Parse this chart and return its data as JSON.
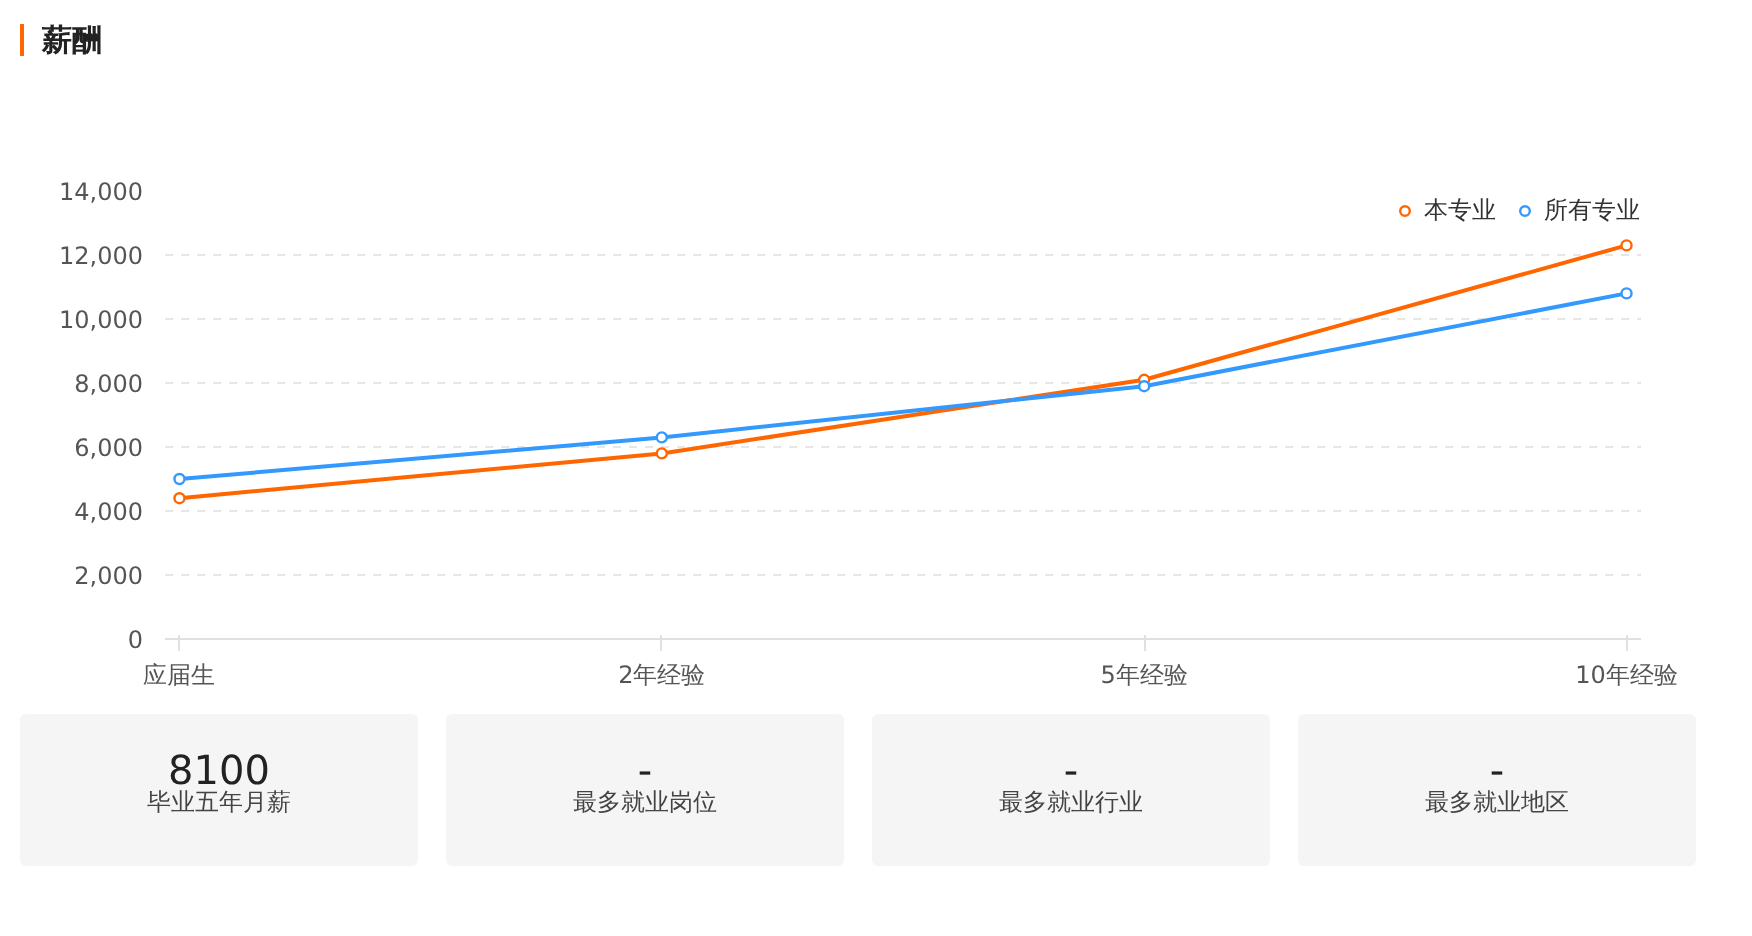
{
  "chart_data": {
    "type": "line",
    "title": "薪酬",
    "categories": [
      "应届生",
      "2年经验",
      "5年经验",
      "10年经验"
    ],
    "series": [
      {
        "name": "本专业",
        "color": "#ff6600",
        "values": [
          4400,
          5800,
          8100,
          12300
        ]
      },
      {
        "name": "所有专业",
        "color": "#3399ff",
        "values": [
          5000,
          6300,
          7900,
          10800
        ]
      }
    ],
    "ylim": [
      0,
      14000
    ],
    "yticks": [
      0,
      {
        "value": 2000,
        "label": "2,000"
      },
      {
        "value": 4000,
        "label": "4,000"
      },
      {
        "value": 6000,
        "label": "6,000"
      },
      {
        "value": 8000,
        "label": "8,000"
      },
      {
        "value": 10000,
        "label": "10,000"
      },
      {
        "value": 12000,
        "label": "12,000"
      },
      {
        "value": 14000,
        "label": "14,000"
      }
    ],
    "grid": "y",
    "legend": "top right",
    "marker": "circle",
    "line_style": "solid",
    "annotations": [
      "8100",
      "毕业五年月薪",
      "-",
      "最多就业岗位",
      "-",
      "最多就业行业",
      "-",
      "最多就业地区"
    ]
  }
}
